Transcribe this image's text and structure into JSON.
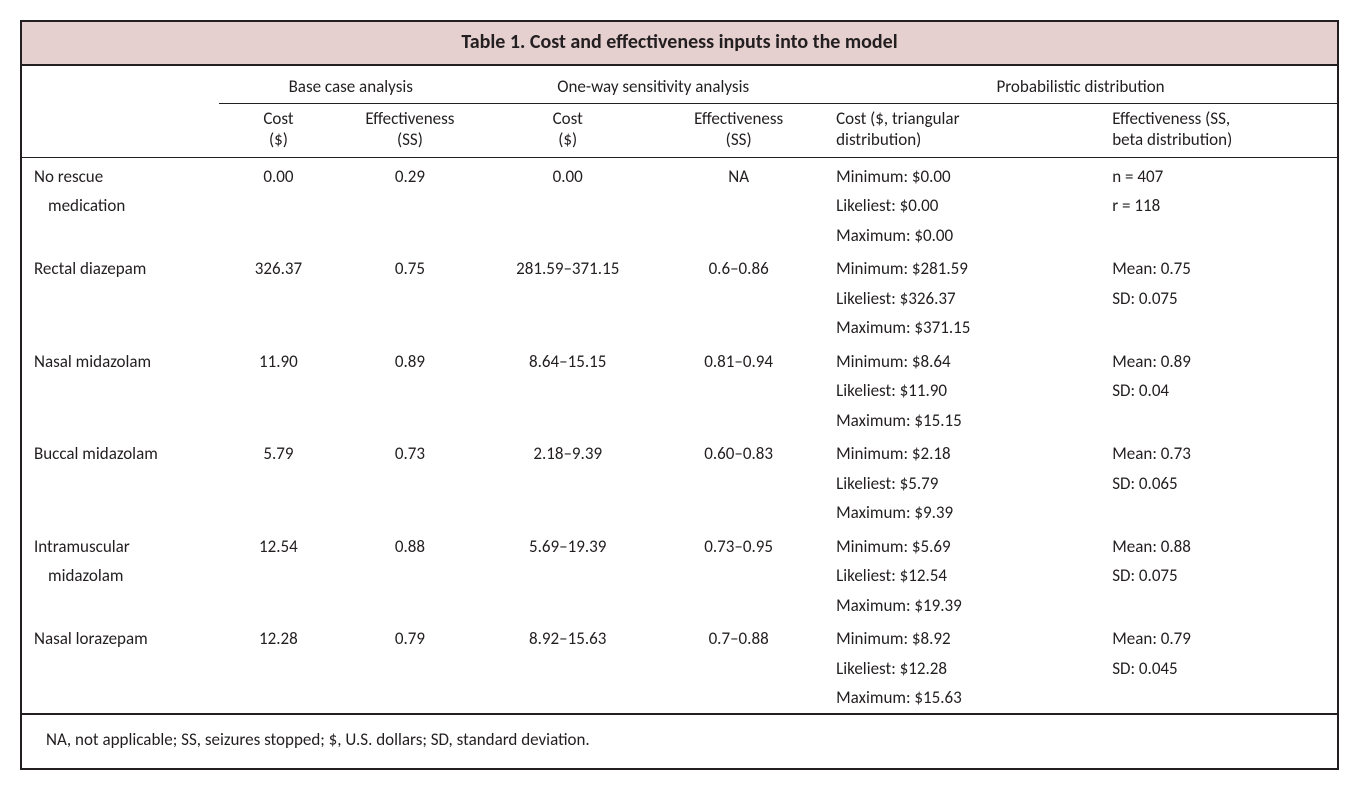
{
  "title": "Table 1.  Cost and effectiveness inputs into the model",
  "group_headers": {
    "base": "Base case analysis",
    "oneway": "One-way sensitivity analysis",
    "prob": "Probabilistic distribution"
  },
  "sub_headers": {
    "cost": "Cost\n($)",
    "eff": "Effectiveness\n(SS)",
    "pd_cost": "Cost ($, triangular\ndistribution)",
    "pd_eff": "Effectiveness (SS,\nbeta distribution)"
  },
  "rows": [
    {
      "label": [
        "No rescue",
        "medication"
      ],
      "base_cost": "0.00",
      "base_eff": "0.29",
      "ow_cost": "0.00",
      "ow_eff": "NA",
      "pd_cost": [
        "Minimum: $0.00",
        "Likeliest: $0.00",
        "Maximum: $0.00"
      ],
      "pd_eff": [
        "n = 407",
        "r = 118"
      ]
    },
    {
      "label": [
        "Rectal diazepam"
      ],
      "base_cost": "326.37",
      "base_eff": "0.75",
      "ow_cost": "281.59–371.15",
      "ow_eff": "0.6–0.86",
      "pd_cost": [
        "Minimum: $281.59",
        "Likeliest: $326.37",
        "Maximum: $371.15"
      ],
      "pd_eff": [
        "Mean: 0.75",
        "SD: 0.075"
      ]
    },
    {
      "label": [
        "Nasal midazolam"
      ],
      "base_cost": "11.90",
      "base_eff": "0.89",
      "ow_cost": "8.64–15.15",
      "ow_eff": "0.81–0.94",
      "pd_cost": [
        "Minimum: $8.64",
        "Likeliest: $11.90",
        "Maximum: $15.15"
      ],
      "pd_eff": [
        "Mean: 0.89",
        "SD: 0.04"
      ]
    },
    {
      "label": [
        "Buccal midazolam"
      ],
      "base_cost": "5.79",
      "base_eff": "0.73",
      "ow_cost": "2.18–9.39",
      "ow_eff": "0.60–0.83",
      "pd_cost": [
        "Minimum: $2.18",
        "Likeliest: $5.79",
        "Maximum: $9.39"
      ],
      "pd_eff": [
        "Mean: 0.73",
        "SD: 0.065"
      ]
    },
    {
      "label": [
        "Intramuscular",
        "midazolam"
      ],
      "base_cost": "12.54",
      "base_eff": "0.88",
      "ow_cost": "5.69–19.39",
      "ow_eff": "0.73–0.95",
      "pd_cost": [
        "Minimum: $5.69",
        "Likeliest: $12.54",
        "Maximum: $19.39"
      ],
      "pd_eff": [
        "Mean: 0.88",
        "SD: 0.075"
      ]
    },
    {
      "label": [
        "Nasal lorazepam"
      ],
      "base_cost": "12.28",
      "base_eff": "0.79",
      "ow_cost": "8.92–15.63",
      "ow_eff": "0.7–0.88",
      "pd_cost": [
        "Minimum: $8.92",
        "Likeliest: $12.28",
        "Maximum: $15.63"
      ],
      "pd_eff": [
        "Mean: 0.79",
        "SD: 0.045"
      ]
    }
  ],
  "footnote": "NA, not applicable; SS, seizures stopped; $, U.S. dollars; SD, standard deviation.",
  "style": {
    "title_bg": "#e5d0cf",
    "border_color": "#231f20",
    "font_family": "Gill Sans",
    "body_font_size_pt": 13,
    "title_font_size_pt": 15,
    "text_color": "#231f20",
    "col_widths_pct": [
      15,
      9,
      11,
      13,
      13,
      21,
      18
    ]
  }
}
